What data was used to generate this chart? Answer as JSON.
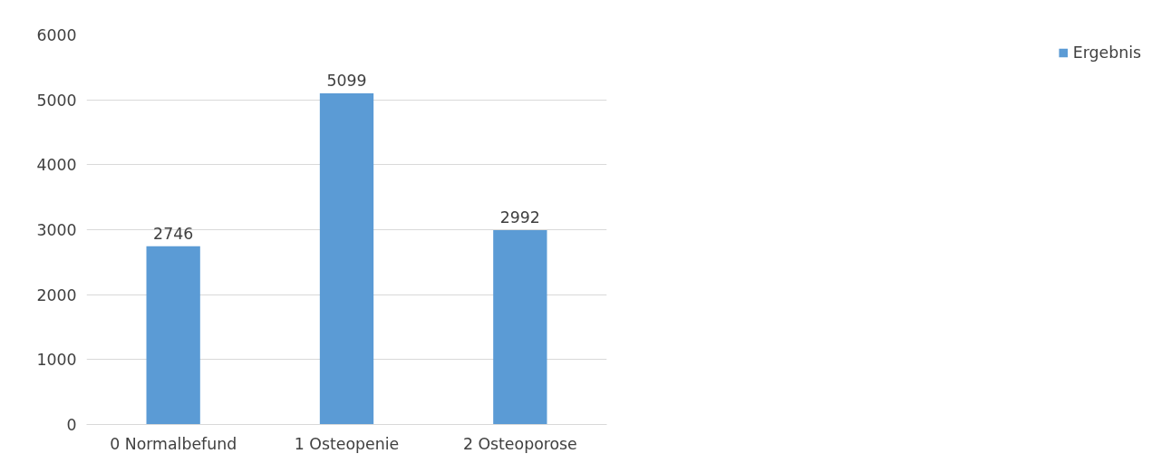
{
  "chart_data": {
    "type": "bar",
    "categories": [
      "0 Normalbefund",
      "1 Osteopenie",
      "2 Osteoporose"
    ],
    "series": [
      {
        "name": "Ergebnis",
        "color": "#5b9bd5",
        "values": [
          2746,
          5099,
          2992
        ]
      }
    ],
    "ylim": [
      0,
      6000
    ],
    "yticks": [
      0,
      1000,
      2000,
      3000,
      4000,
      5000,
      6000
    ],
    "grid": "y",
    "legend": "right",
    "data_labels": true
  }
}
